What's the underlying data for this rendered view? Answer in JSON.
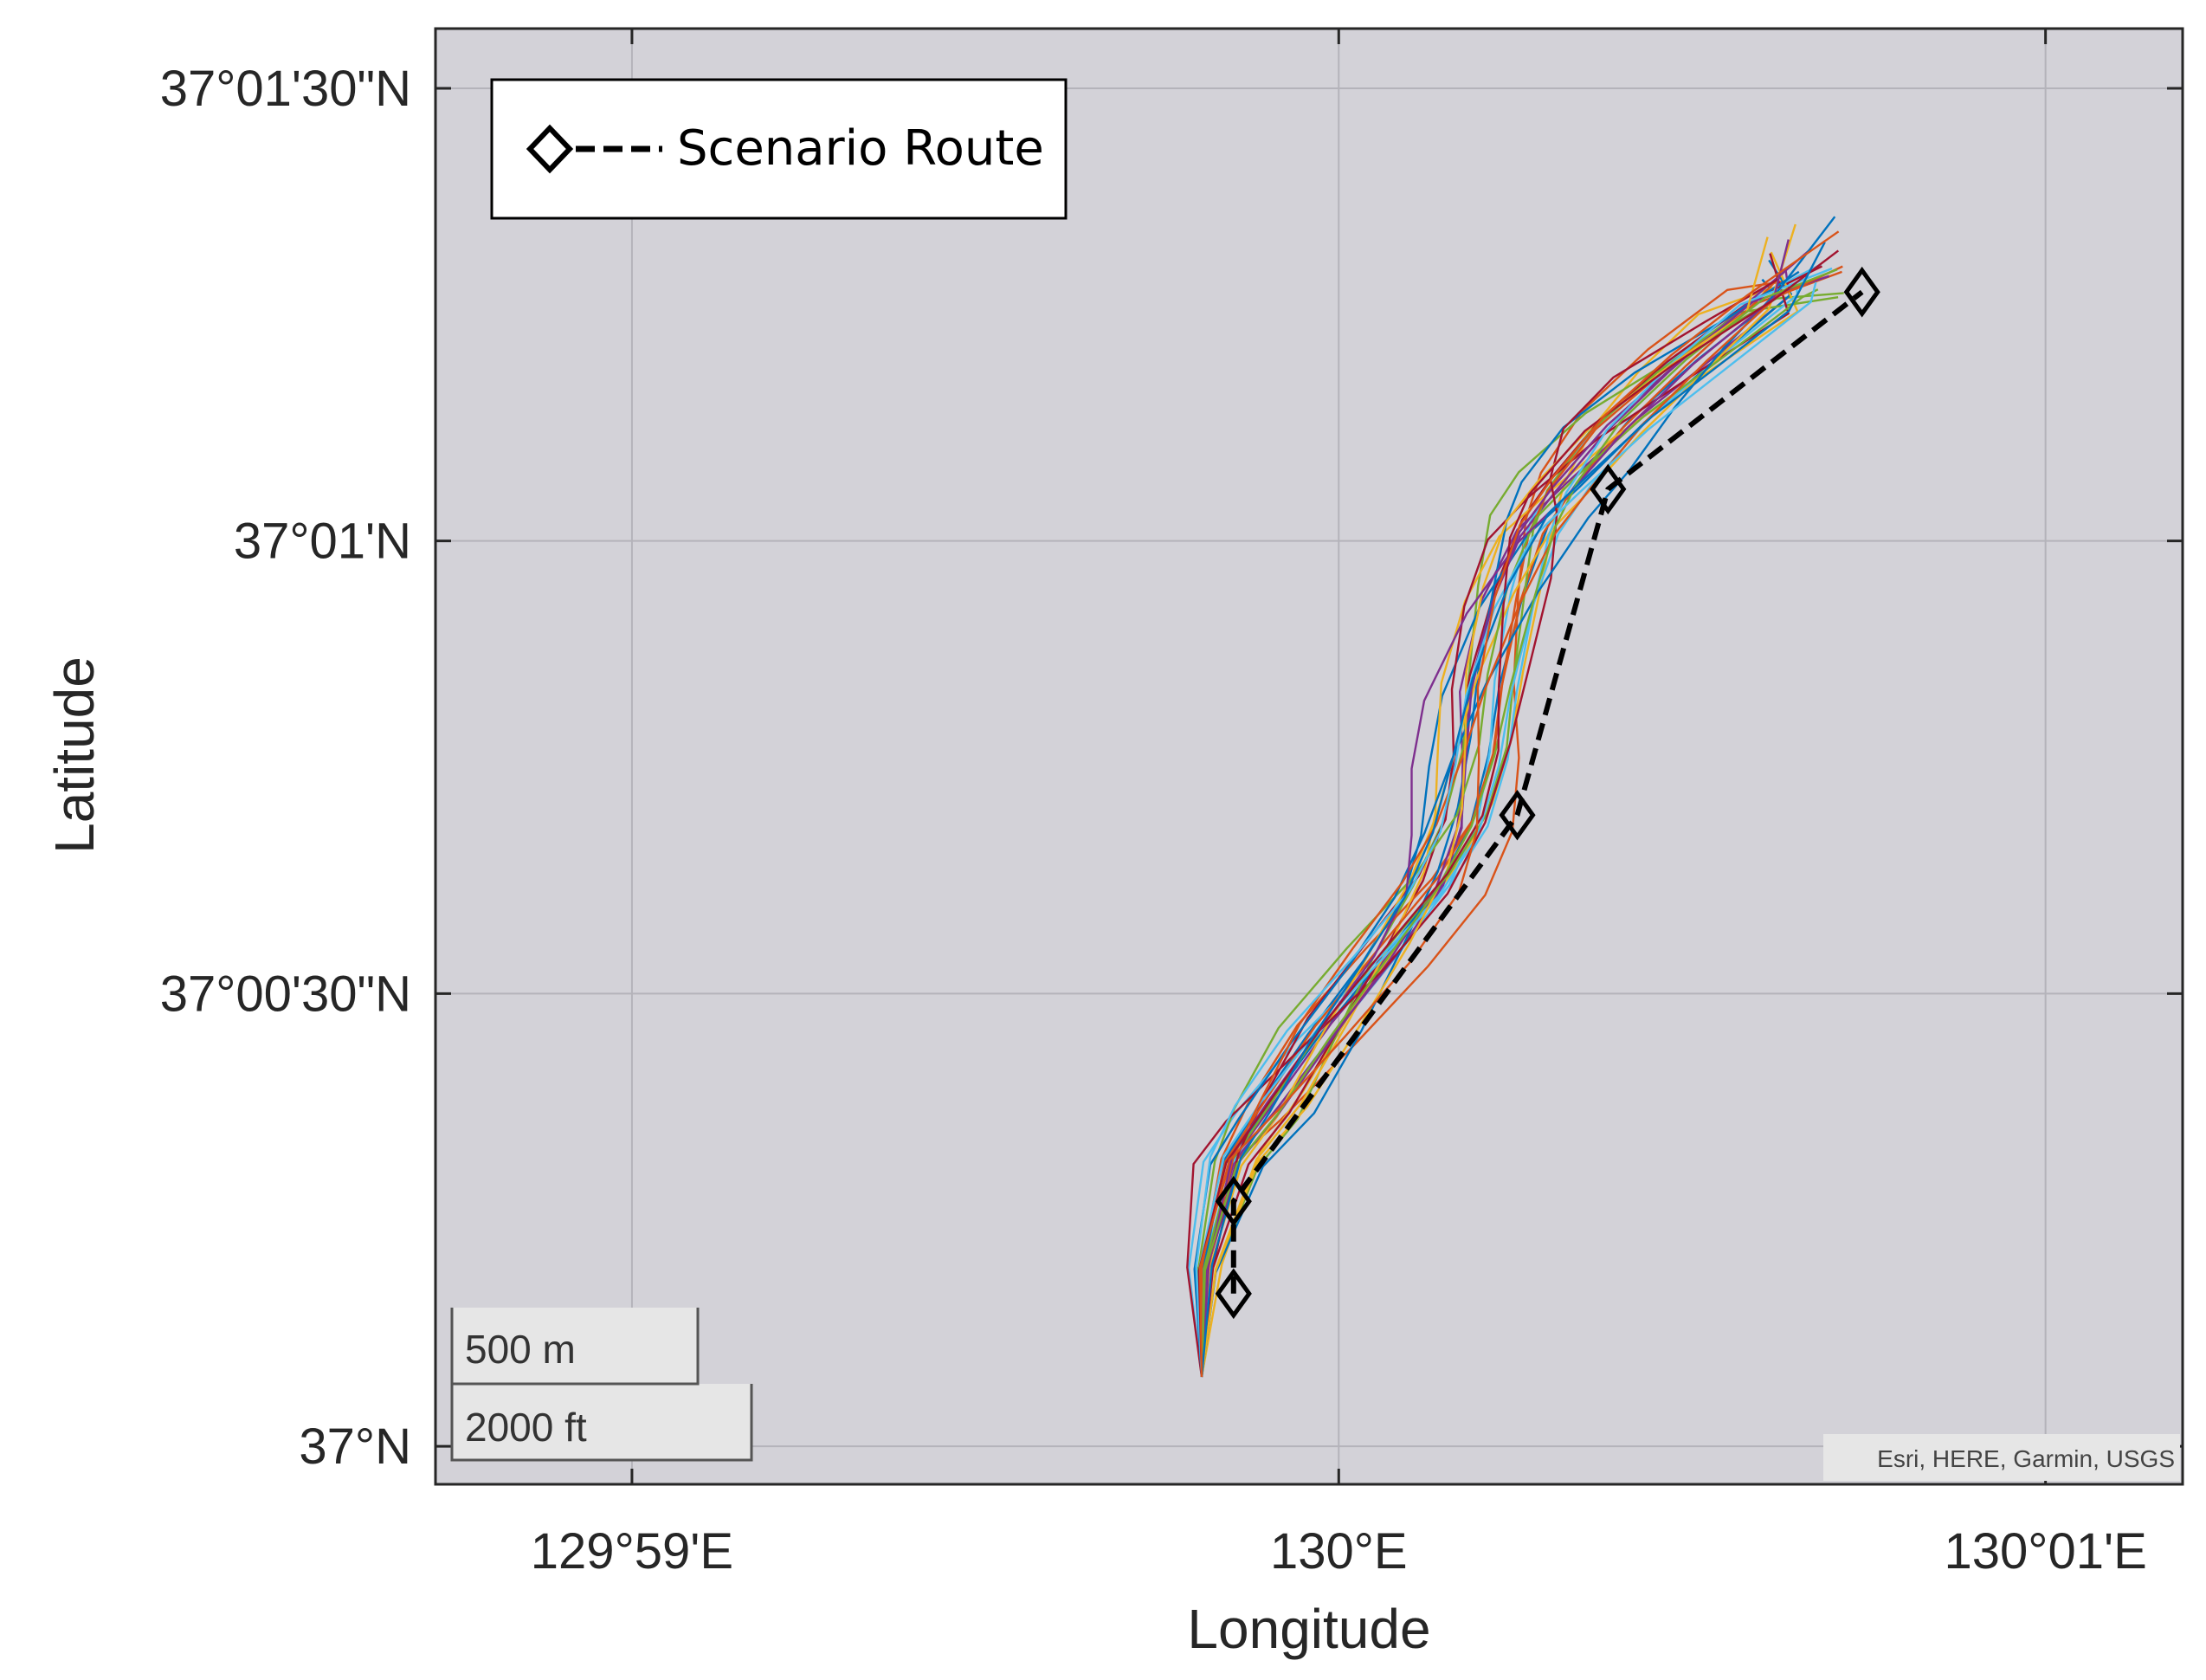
{
  "chart_data": {
    "type": "map-line",
    "xlabel": "Longitude",
    "ylabel": "Latitude",
    "x_ticks": [
      {
        "value": 129.983333,
        "label": "129°59'E"
      },
      {
        "value": 130.0,
        "label": "130°E"
      },
      {
        "value": 130.016667,
        "label": "130°01'E"
      }
    ],
    "y_ticks": [
      {
        "value": 37.0,
        "label": "37°N"
      },
      {
        "value": 37.008333,
        "label": "37°00'30\"N"
      },
      {
        "value": 37.016667,
        "label": "37°01'N"
      },
      {
        "value": 37.025,
        "label": "37°01'30\"N"
      }
    ],
    "xlim": [
      129.9787,
      130.0199
    ],
    "ylim": [
      36.9993,
      37.0261
    ],
    "grid": true,
    "legend": {
      "position": "top-left",
      "entries": [
        "Scenario Route"
      ]
    },
    "scenario_route": {
      "name": "Scenario Route",
      "waypoints": [
        {
          "lon": 129.99752,
          "lat": 37.00281
        },
        {
          "lon": 129.99752,
          "lat": 37.00451
        },
        {
          "lon": 130.00421,
          "lat": 37.01162
        },
        {
          "lon": 130.00635,
          "lat": 37.01762
        },
        {
          "lon": 130.01234,
          "lat": 37.02125
        }
      ]
    },
    "trajectories_count": 30,
    "trajectory_colors": [
      "#0072bd",
      "#d95319",
      "#edb120",
      "#7e2f8e",
      "#77ac30",
      "#4dbeee",
      "#a2142f"
    ],
    "scale_bar": {
      "metric": "500 m",
      "imperial": "2000 ft"
    },
    "attribution": "Esri, HERE, Garmin, USGS",
    "background_color": "#d3d2d8"
  }
}
